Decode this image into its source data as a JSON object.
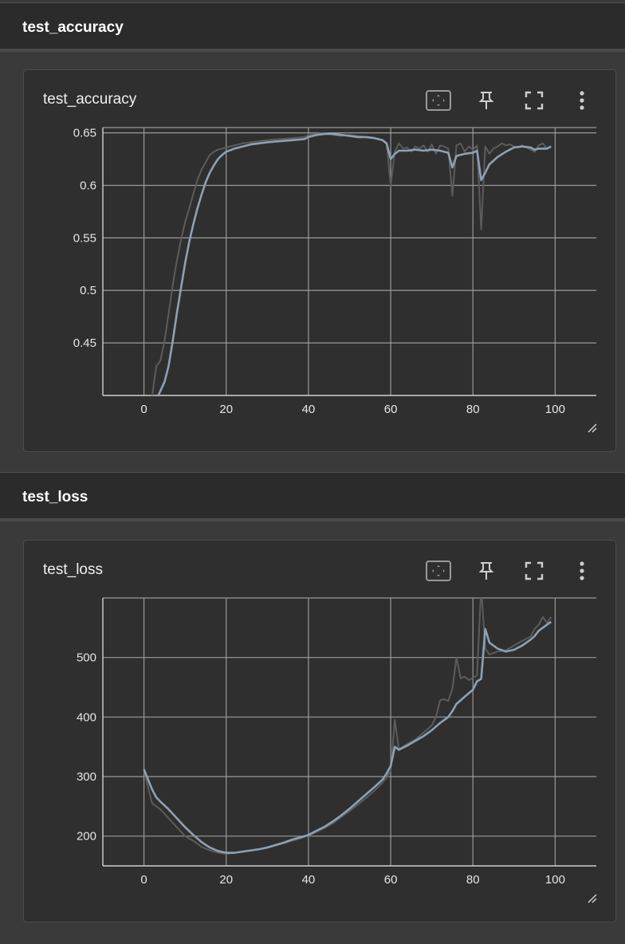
{
  "sections": [
    {
      "header": "test_accuracy",
      "card_title": "test_accuracy"
    },
    {
      "header": "test_loss",
      "card_title": "test_loss"
    }
  ],
  "toolbar_icons": [
    "fit-domain-icon",
    "pin-icon",
    "fullscreen-icon",
    "more-vert-icon"
  ],
  "colors": {
    "raw_line": "#5c5c5c",
    "smoothed_line": "#8fa0b4",
    "grid": "#9a9a9a",
    "axis": "#cfcfcf"
  },
  "chart_data": [
    {
      "type": "line",
      "title": "test_accuracy",
      "xlim": [
        -10,
        110
      ],
      "ylim": [
        0.4,
        0.655
      ],
      "x_ticks": [
        0,
        20,
        40,
        60,
        80,
        100
      ],
      "x_tick_labels": [
        "0",
        "20",
        "40",
        "60",
        "80",
        "100"
      ],
      "y_ticks": [
        0.45,
        0.5,
        0.55,
        0.6,
        0.65
      ],
      "y_tick_labels": [
        "0.45",
        "0.5",
        "0.55",
        "0.6",
        "0.65"
      ],
      "grid": true,
      "series": [
        {
          "role": "raw",
          "x": [
            2,
            3,
            4,
            5,
            6,
            7,
            8,
            9,
            10,
            11,
            12,
            13,
            14,
            15,
            16,
            17,
            18,
            19,
            20,
            22,
            24,
            26,
            28,
            30,
            33,
            36,
            39,
            40,
            42,
            44,
            46,
            48,
            50,
            52,
            54,
            56,
            58,
            59,
            60,
            61,
            62,
            63,
            64,
            65,
            66,
            67,
            68,
            69,
            70,
            71,
            72,
            73,
            74,
            75,
            76,
            77,
            78,
            79,
            80,
            81,
            82,
            83,
            84,
            85,
            86,
            87,
            88,
            89,
            90,
            91,
            92,
            93,
            94,
            95,
            96,
            97,
            98,
            99
          ],
          "y": [
            0.4,
            0.428,
            0.433,
            0.452,
            0.478,
            0.505,
            0.528,
            0.548,
            0.565,
            0.578,
            0.592,
            0.605,
            0.615,
            0.622,
            0.629,
            0.632,
            0.634,
            0.635,
            0.636,
            0.638,
            0.64,
            0.641,
            0.642,
            0.643,
            0.644,
            0.645,
            0.646,
            0.648,
            0.649,
            0.65,
            0.648,
            0.647,
            0.648,
            0.647,
            0.646,
            0.645,
            0.643,
            0.64,
            0.6,
            0.632,
            0.64,
            0.635,
            0.636,
            0.632,
            0.637,
            0.635,
            0.638,
            0.632,
            0.639,
            0.63,
            0.638,
            0.637,
            0.635,
            0.59,
            0.638,
            0.64,
            0.632,
            0.637,
            0.634,
            0.638,
            0.558,
            0.637,
            0.63,
            0.635,
            0.637,
            0.64,
            0.638,
            0.639,
            0.637,
            0.636,
            0.638,
            0.636,
            0.634,
            0.632,
            0.638,
            0.64,
            0.635,
            0.637
          ]
        },
        {
          "role": "smoothed",
          "x": [
            3.5,
            5,
            6,
            7,
            8,
            9,
            10,
            11,
            12,
            13,
            14,
            15,
            16,
            17,
            18,
            19,
            20,
            22,
            24,
            26,
            28,
            30,
            33,
            36,
            39,
            40,
            42,
            44,
            46,
            48,
            50,
            52,
            54,
            56,
            58,
            59,
            60,
            61,
            62,
            64,
            66,
            68,
            70,
            72,
            74,
            75,
            76,
            78,
            80,
            81,
            82,
            83,
            84,
            86,
            88,
            90,
            92,
            94,
            95,
            96,
            98,
            99
          ],
          "y": [
            0.4,
            0.413,
            0.428,
            0.452,
            0.478,
            0.502,
            0.526,
            0.546,
            0.563,
            0.578,
            0.591,
            0.603,
            0.612,
            0.619,
            0.625,
            0.629,
            0.632,
            0.635,
            0.637,
            0.639,
            0.64,
            0.641,
            0.642,
            0.643,
            0.644,
            0.646,
            0.648,
            0.649,
            0.649,
            0.648,
            0.647,
            0.646,
            0.646,
            0.645,
            0.643,
            0.64,
            0.625,
            0.63,
            0.633,
            0.633,
            0.634,
            0.633,
            0.634,
            0.633,
            0.631,
            0.617,
            0.628,
            0.63,
            0.631,
            0.633,
            0.605,
            0.612,
            0.62,
            0.627,
            0.632,
            0.636,
            0.637,
            0.636,
            0.634,
            0.635,
            0.635,
            0.637
          ]
        }
      ]
    },
    {
      "type": "line",
      "title": "test_loss",
      "xlim": [
        -10,
        110
      ],
      "ylim": [
        150,
        600
      ],
      "x_ticks": [
        0,
        20,
        40,
        60,
        80,
        100
      ],
      "x_tick_labels": [
        "0",
        "20",
        "40",
        "60",
        "80",
        "100"
      ],
      "y_ticks": [
        200,
        300,
        400,
        500
      ],
      "y_tick_labels": [
        "200",
        "300",
        "400",
        "500"
      ],
      "grid": true,
      "series": [
        {
          "role": "raw",
          "x": [
            0,
            1,
            2,
            3,
            4,
            6,
            8,
            10,
            12,
            14,
            16,
            18,
            20,
            22,
            24,
            26,
            28,
            30,
            32,
            34,
            36,
            38,
            40,
            42,
            44,
            46,
            48,
            50,
            52,
            54,
            56,
            58,
            59,
            60,
            61,
            62,
            64,
            66,
            68,
            70,
            71,
            72,
            73,
            74,
            75,
            76,
            77,
            78,
            79,
            80,
            81,
            82,
            83,
            84,
            86,
            88,
            90,
            92,
            94,
            95,
            96,
            97,
            98,
            99
          ],
          "y": [
            312,
            282,
            255,
            250,
            245,
            230,
            215,
            200,
            192,
            182,
            176,
            172,
            170,
            172,
            174,
            176,
            178,
            180,
            184,
            188,
            192,
            196,
            201,
            207,
            214,
            222,
            232,
            242,
            253,
            264,
            276,
            290,
            298,
            310,
            395,
            346,
            355,
            362,
            374,
            386,
            400,
            428,
            430,
            427,
            448,
            500,
            465,
            468,
            462,
            466,
            470,
            620,
            515,
            505,
            510,
            512,
            520,
            528,
            535,
            548,
            555,
            568,
            558,
            568
          ]
        },
        {
          "role": "smoothed",
          "x": [
            0,
            2,
            3,
            4,
            6,
            8,
            10,
            12,
            14,
            16,
            18,
            20,
            22,
            24,
            26,
            28,
            30,
            32,
            34,
            36,
            38,
            40,
            42,
            44,
            46,
            48,
            50,
            52,
            54,
            56,
            58,
            59,
            60,
            61,
            62,
            64,
            66,
            68,
            70,
            72,
            74,
            75,
            76,
            77,
            78,
            80,
            81,
            82,
            83,
            84,
            86,
            88,
            90,
            92,
            94,
            95,
            96,
            98,
            99
          ],
          "y": [
            312,
            278,
            265,
            258,
            245,
            230,
            215,
            202,
            190,
            181,
            175,
            172,
            172,
            174,
            176,
            178,
            181,
            185,
            189,
            194,
            198,
            202,
            209,
            216,
            225,
            235,
            246,
            258,
            270,
            282,
            295,
            305,
            318,
            350,
            345,
            352,
            360,
            368,
            378,
            390,
            400,
            410,
            422,
            428,
            434,
            446,
            460,
            464,
            548,
            525,
            515,
            510,
            513,
            520,
            530,
            536,
            545,
            555,
            560
          ]
        }
      ]
    }
  ]
}
